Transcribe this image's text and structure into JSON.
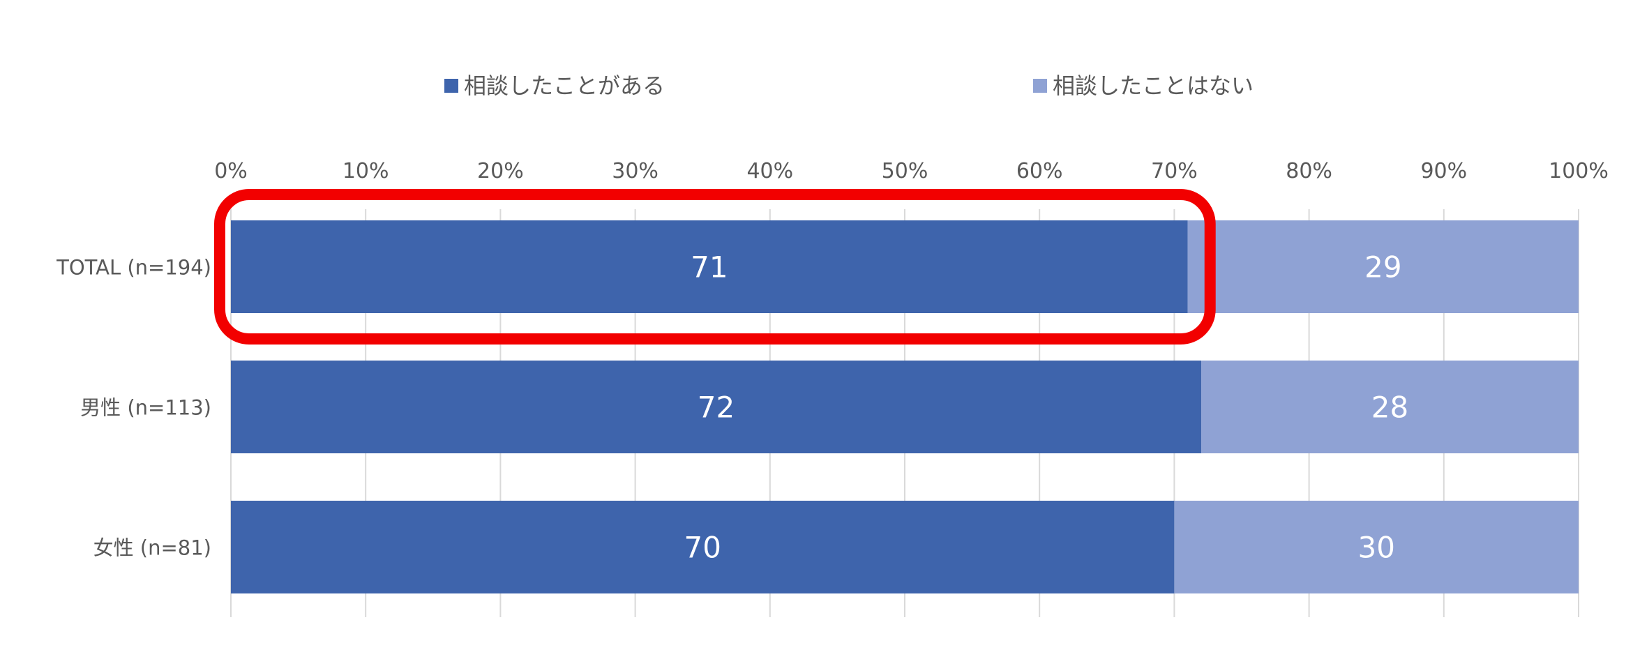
{
  "chart_data": {
    "type": "bar",
    "orientation": "horizontal",
    "stacked": true,
    "categories": [
      "TOTAL (n=194)",
      "男性 (n=113)",
      "女性 (n=81)"
    ],
    "series": [
      {
        "name": "相談したことがある",
        "values": [
          71,
          72,
          70
        ],
        "color": "#3E64AC"
      },
      {
        "name": "相談したことはない",
        "values": [
          29,
          28,
          30
        ],
        "color": "#8FA2D4"
      }
    ],
    "xticks": [
      "0%",
      "10%",
      "20%",
      "30%",
      "40%",
      "50%",
      "60%",
      "70%",
      "80%",
      "90%",
      "100%"
    ],
    "xlim": [
      0,
      100
    ],
    "grid": true,
    "legend_position": "top",
    "data_label_color": "#ffffff",
    "highlight": {
      "category_index": 0,
      "series_index": 0,
      "color": "#F20000"
    }
  }
}
